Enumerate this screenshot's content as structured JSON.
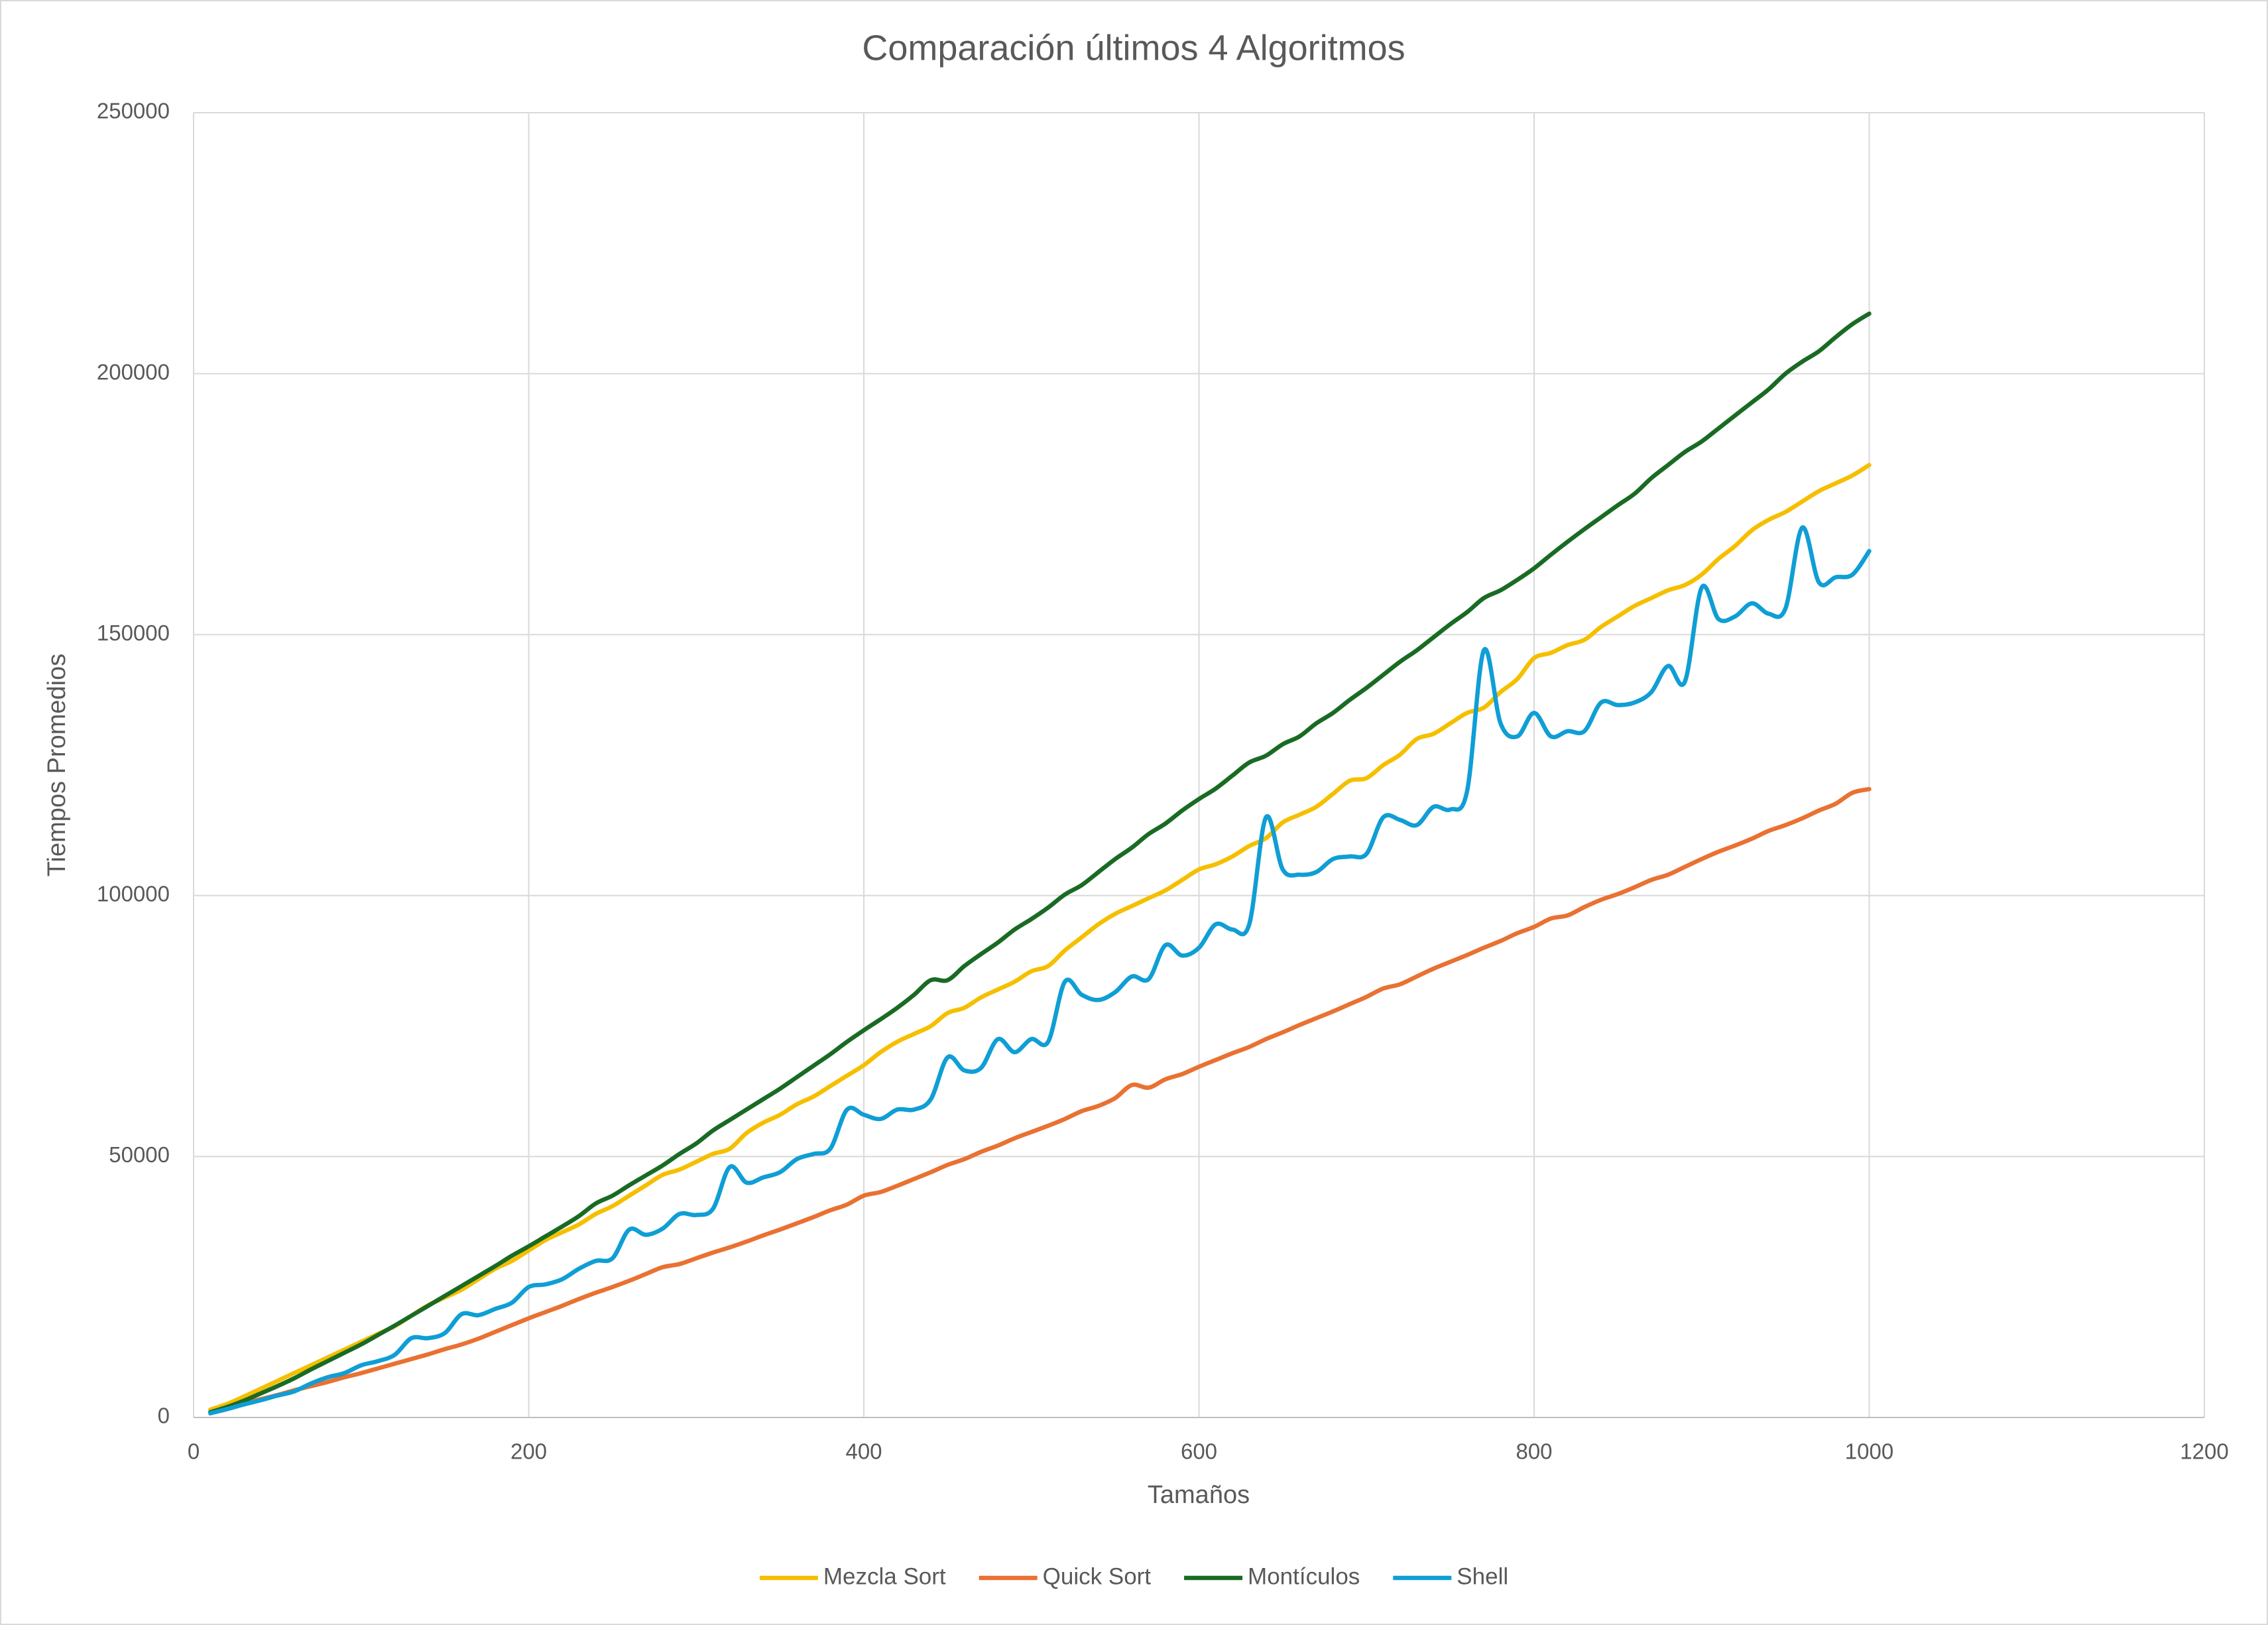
{
  "chart_data": {
    "type": "line",
    "title": "Comparación últimos 4 Algoritmos",
    "x_label": "Tamaños",
    "y_label": "Tiempos Promedios",
    "x": [
      10,
      20,
      30,
      40,
      50,
      60,
      70,
      80,
      90,
      100,
      110,
      120,
      130,
      140,
      150,
      160,
      170,
      180,
      190,
      200,
      210,
      220,
      230,
      240,
      250,
      260,
      270,
      280,
      290,
      300,
      310,
      320,
      330,
      340,
      350,
      360,
      370,
      380,
      390,
      400,
      410,
      420,
      430,
      440,
      450,
      460,
      470,
      480,
      490,
      500,
      510,
      520,
      530,
      540,
      550,
      560,
      570,
      580,
      590,
      600,
      610,
      620,
      630,
      640,
      650,
      660,
      670,
      680,
      690,
      700,
      710,
      720,
      730,
      740,
      750,
      760,
      770,
      780,
      790,
      800,
      810,
      820,
      830,
      840,
      850,
      860,
      870,
      880,
      890,
      900,
      910,
      920,
      930,
      940,
      950,
      960,
      970,
      980,
      990,
      1000
    ],
    "series": [
      {
        "name": "Mezcla Sort",
        "color": "#f5bf00",
        "values": [
          1500,
          2600,
          4000,
          5500,
          7000,
          8500,
          10000,
          11500,
          13000,
          14500,
          16000,
          17500,
          19500,
          21500,
          23000,
          24500,
          26500,
          28500,
          30000,
          32000,
          34000,
          35500,
          37000,
          39000,
          40500,
          42500,
          44500,
          46500,
          47500,
          49000,
          50500,
          51500,
          54500,
          56500,
          58000,
          60000,
          61500,
          63500,
          65500,
          67500,
          70000,
          72000,
          73500,
          75000,
          77500,
          78500,
          80500,
          82000,
          83500,
          85500,
          86500,
          89500,
          92000,
          94500,
          96500,
          98000,
          99500,
          101000,
          103000,
          105000,
          106000,
          107500,
          109500,
          111000,
          114000,
          115500,
          117000,
          119500,
          122000,
          122500,
          125000,
          127000,
          130000,
          131000,
          133000,
          135000,
          136000,
          139000,
          141500,
          145500,
          146500,
          148000,
          149000,
          151500,
          153500,
          155500,
          157000,
          158500,
          159500,
          161500,
          164500,
          167000,
          170000,
          172000,
          173500,
          175500,
          177500,
          179000,
          180500,
          182500
        ]
      },
      {
        "name": "Quick Sort",
        "color": "#e97132",
        "values": [
          1000,
          1800,
          2700,
          3500,
          4300,
          5200,
          6000,
          6800,
          7700,
          8500,
          9400,
          10300,
          11200,
          12100,
          13100,
          14000,
          15100,
          16400,
          17700,
          19000,
          20200,
          21400,
          22700,
          23900,
          25000,
          26200,
          27500,
          28800,
          29400,
          30500,
          31600,
          32600,
          33700,
          34900,
          36000,
          37200,
          38400,
          39700,
          40800,
          42500,
          43200,
          44400,
          45700,
          47000,
          48400,
          49500,
          50900,
          52100,
          53500,
          54700,
          55900,
          57200,
          58700,
          59700,
          61200,
          63700,
          63200,
          64800,
          65800,
          67200,
          68500,
          69800,
          71000,
          72500,
          73800,
          75200,
          76500,
          77800,
          79200,
          80600,
          82200,
          83000,
          84500,
          86000,
          87300,
          88600,
          90000,
          91300,
          92800,
          94000,
          95600,
          96200,
          97800,
          99200,
          100300,
          101600,
          103000,
          104000,
          105500,
          107000,
          108400,
          109600,
          110900,
          112400,
          113500,
          114800,
          116300,
          117600,
          119700,
          120400
        ]
      },
      {
        "name": "Montículos",
        "color": "#196b24",
        "values": [
          1000,
          2000,
          3200,
          4600,
          6000,
          7500,
          9200,
          10800,
          12400,
          14000,
          15800,
          17600,
          19500,
          21400,
          23300,
          25200,
          27100,
          29000,
          31000,
          32800,
          34700,
          36600,
          38600,
          41000,
          42500,
          44500,
          46400,
          48300,
          50500,
          52500,
          55000,
          57000,
          59000,
          61000,
          63000,
          65200,
          67400,
          69600,
          72000,
          74200,
          76300,
          78500,
          81000,
          83800,
          83800,
          86500,
          88800,
          91000,
          93500,
          95500,
          97700,
          100200,
          102000,
          104500,
          107000,
          109200,
          111800,
          113800,
          116300,
          118500,
          120500,
          123000,
          125500,
          126800,
          129000,
          130500,
          133000,
          135000,
          137500,
          139800,
          142300,
          144800,
          147000,
          149500,
          152000,
          154300,
          157000,
          158500,
          160500,
          162700,
          165300,
          167800,
          170200,
          172500,
          174800,
          177000,
          180000,
          182500,
          185000,
          187000,
          189500,
          192000,
          194500,
          197000,
          200000,
          202300,
          204300,
          207000,
          209500,
          211500
        ]
      },
      {
        "name": "Shell",
        "color": "#0f9ed5",
        "values": [
          800,
          1600,
          2500,
          3300,
          4200,
          5000,
          6500,
          7700,
          8500,
          10000,
          10800,
          12000,
          15200,
          15200,
          16200,
          19800,
          19600,
          20800,
          22000,
          25000,
          25500,
          26500,
          28500,
          30000,
          30500,
          36000,
          35000,
          36200,
          39000,
          38800,
          40000,
          48000,
          45000,
          46000,
          47000,
          49500,
          50500,
          51500,
          59000,
          58000,
          57200,
          59000,
          59000,
          61000,
          69000,
          66500,
          67000,
          72500,
          70000,
          72500,
          72000,
          83500,
          81000,
          80000,
          81500,
          84500,
          84000,
          90500,
          88500,
          90000,
          94500,
          93500,
          94500,
          115000,
          105000,
          104000,
          104500,
          107000,
          107500,
          108000,
          115000,
          114500,
          113500,
          117000,
          116500,
          120000,
          147000,
          133000,
          130500,
          135000,
          130500,
          131500,
          131500,
          137000,
          136500,
          137000,
          139000,
          144000,
          141000,
          159000,
          153000,
          153500,
          156000,
          154000,
          155000,
          170500,
          160000,
          161000,
          161500,
          166000
        ]
      }
    ],
    "xlim": [
      0,
      1200
    ],
    "xticks": [
      0,
      200,
      400,
      600,
      800,
      1000,
      1200
    ],
    "ylim": [
      0,
      250000
    ],
    "yticks": [
      0,
      50000,
      100000,
      150000,
      200000,
      250000
    ],
    "grid": true,
    "legend": "bottom"
  }
}
